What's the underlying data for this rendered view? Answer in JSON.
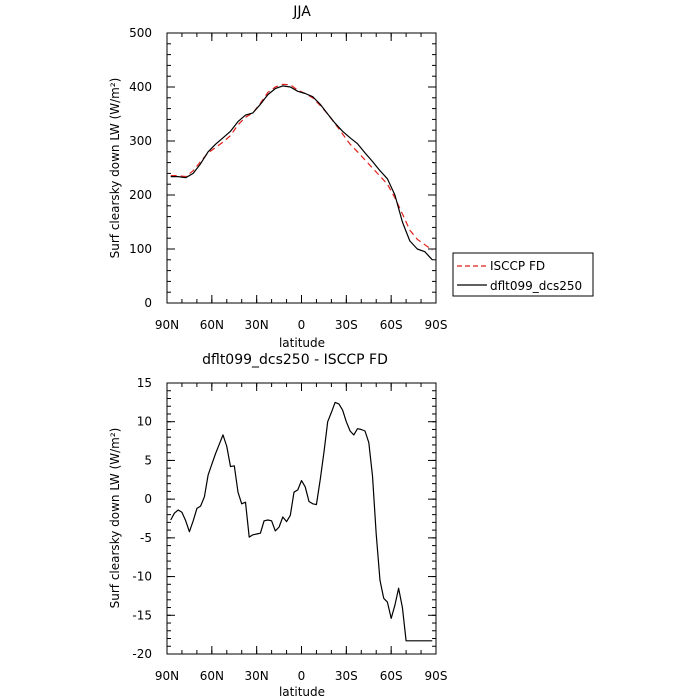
{
  "chart_data": [
    {
      "type": "line",
      "title": "JJA",
      "xlabel": "latitude",
      "ylabel": "Surf clearsky down LW (W/m²)",
      "xlim": [
        90,
        -90
      ],
      "ylim": [
        0,
        500
      ],
      "x_ticks": [
        {
          "value": 90,
          "label": "90N"
        },
        {
          "value": 60,
          "label": "60N"
        },
        {
          "value": 30,
          "label": "30N"
        },
        {
          "value": 0,
          "label": "0"
        },
        {
          "value": -30,
          "label": "30S"
        },
        {
          "value": -60,
          "label": "60S"
        },
        {
          "value": -90,
          "label": "90S"
        }
      ],
      "y_ticks": [
        0,
        100,
        200,
        300,
        400,
        500
      ],
      "grid": false,
      "legend_position": "outside-right",
      "series": [
        {
          "name": "ISCCP FD",
          "color": "#e0201b",
          "dash": "dashed",
          "x": [
            87.5,
            82.5,
            77.5,
            72.5,
            67.5,
            62.5,
            57.5,
            52.5,
            47.5,
            42.5,
            37.5,
            32.5,
            27.5,
            22.5,
            17.5,
            12.5,
            7.5,
            2.5,
            -2.5,
            -7.5,
            -12.5,
            -17.5,
            -22.5,
            -27.5,
            -32.5,
            -37.5,
            -42.5,
            -47.5,
            -52.5,
            -57.5,
            -62.5,
            -67.5,
            -72.5,
            -77.5,
            -82.5,
            -87.5
          ],
          "y": [
            236,
            236,
            234,
            245,
            262,
            278,
            288,
            298,
            310,
            330,
            344,
            352,
            370,
            390,
            400,
            405,
            404,
            394,
            388,
            380,
            366,
            350,
            332,
            313,
            294,
            280,
            265,
            250,
            235,
            220,
            195,
            165,
            135,
            118,
            108,
            98
          ]
        },
        {
          "name": "dflt099_dcs250",
          "color": "#000000",
          "dash": "solid",
          "x": [
            87.5,
            82.5,
            77.5,
            72.5,
            67.5,
            62.5,
            57.5,
            52.5,
            47.5,
            42.5,
            37.5,
            32.5,
            27.5,
            22.5,
            17.5,
            12.5,
            7.5,
            2.5,
            -2.5,
            -7.5,
            -12.5,
            -17.5,
            -22.5,
            -27.5,
            -32.5,
            -37.5,
            -42.5,
            -47.5,
            -52.5,
            -57.5,
            -62.5,
            -67.5,
            -72.5,
            -77.5,
            -82.5,
            -87.5
          ],
          "y": [
            234,
            234,
            232,
            240,
            258,
            280,
            294,
            306,
            318,
            336,
            348,
            352,
            368,
            386,
            397,
            402,
            400,
            392,
            388,
            382,
            368,
            350,
            333,
            318,
            306,
            295,
            278,
            262,
            245,
            230,
            200,
            150,
            115,
            100,
            95,
            80
          ]
        }
      ]
    },
    {
      "type": "line",
      "title": "dflt099_dcs250 - ISCCP FD",
      "xlabel": "latitude",
      "ylabel": "Surf clearsky down LW (W/m²)",
      "xlim": [
        90,
        -90
      ],
      "ylim": [
        -20,
        15
      ],
      "x_ticks": [
        {
          "value": 90,
          "label": "90N"
        },
        {
          "value": 60,
          "label": "60N"
        },
        {
          "value": 30,
          "label": "30N"
        },
        {
          "value": 0,
          "label": "0"
        },
        {
          "value": -30,
          "label": "30S"
        },
        {
          "value": -60,
          "label": "60S"
        },
        {
          "value": -90,
          "label": "90S"
        }
      ],
      "y_ticks": [
        -20,
        -15,
        -10,
        -5,
        0,
        5,
        10,
        15
      ],
      "grid": false,
      "series": [
        {
          "color": "#000000",
          "dash": "solid",
          "x": [
            87.5,
            85,
            82.5,
            80,
            77.5,
            75,
            72.5,
            70,
            67.5,
            65,
            62.5,
            60,
            57.5,
            55,
            52.5,
            50,
            47.5,
            45,
            42.5,
            40,
            37.5,
            35,
            32.5,
            30,
            27.5,
            25,
            22.5,
            20,
            17.5,
            15,
            12.5,
            10,
            7.5,
            5,
            2.5,
            0,
            -2.5,
            -5,
            -7.5,
            -10,
            -12.5,
            -15,
            -17.5,
            -20,
            -22.5,
            -25,
            -27.5,
            -30,
            -32.5,
            -35,
            -37.5,
            -40,
            -42.5,
            -45,
            -47.5,
            -50,
            -52.5,
            -55,
            -57.5,
            -60,
            -62.5,
            -65,
            -67.5,
            -70,
            -72.5,
            -75,
            -77.5,
            -80,
            -82.5,
            -85,
            -87.5
          ],
          "y": [
            -2.7,
            -1.8,
            -1.4,
            -1.7,
            -2.8,
            -4.2,
            -2.8,
            -1.2,
            -0.9,
            0.3,
            3.1,
            4.5,
            5.9,
            7.1,
            8.3,
            6.8,
            4.2,
            4.3,
            0.9,
            -0.6,
            -0.4,
            -4.9,
            -4.6,
            -4.5,
            -4.4,
            -2.8,
            -2.7,
            -2.8,
            -4.1,
            -3.6,
            -2.3,
            -2.9,
            -2.1,
            0.9,
            1.2,
            2.4,
            1.6,
            -0.3,
            -0.6,
            -0.7,
            2.5,
            6.0,
            10.0,
            11.2,
            12.5,
            12.3,
            11.5,
            10.0,
            8.8,
            8.3,
            9.1,
            9.0,
            8.8,
            7.3,
            3.0,
            -4.5,
            -10.5,
            -12.8,
            -13.3,
            -15.4,
            -13.7,
            -11.5,
            -14.0,
            -18.3,
            -18.3,
            -18.3,
            -18.3,
            -18.3,
            -18.3,
            -18.3,
            -18.3
          ]
        }
      ]
    }
  ]
}
